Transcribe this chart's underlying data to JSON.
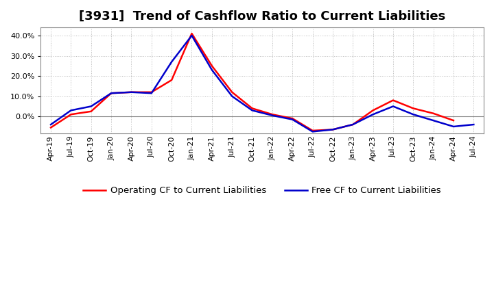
{
  "title": "[3931]  Trend of Cashflow Ratio to Current Liabilities",
  "x_labels": [
    "Apr-19",
    "Jul-19",
    "Oct-19",
    "Jan-20",
    "Apr-20",
    "Jul-20",
    "Oct-20",
    "Jan-21",
    "Apr-21",
    "Jul-21",
    "Oct-21",
    "Jan-22",
    "Apr-22",
    "Jul-22",
    "Oct-22",
    "Jan-23",
    "Apr-23",
    "Jul-23",
    "Oct-23",
    "Jan-24",
    "Apr-24",
    "Jul-24"
  ],
  "operating_cf": [
    -0.055,
    0.01,
    0.025,
    0.115,
    0.12,
    0.12,
    0.18,
    0.41,
    0.25,
    0.12,
    0.04,
    0.01,
    -0.01,
    -0.07,
    -0.065,
    -0.04,
    0.03,
    0.08,
    0.04,
    0.015,
    -0.02,
    null
  ],
  "free_cf": [
    -0.04,
    0.03,
    0.05,
    0.115,
    0.12,
    0.115,
    0.27,
    0.4,
    0.23,
    0.1,
    0.03,
    0.005,
    -0.015,
    -0.075,
    -0.065,
    -0.04,
    0.01,
    0.05,
    0.01,
    -0.02,
    -0.05,
    -0.04
  ],
  "operating_color": "#ff0000",
  "free_color": "#0000cc",
  "ylim": [
    -0.085,
    0.44
  ],
  "yticks": [
    0.0,
    0.1,
    0.2,
    0.3,
    0.4
  ],
  "background_color": "#ffffff",
  "grid_color": "#bbbbbb",
  "legend_op": "Operating CF to Current Liabilities",
  "legend_free": "Free CF to Current Liabilities",
  "title_fontsize": 13,
  "tick_fontsize": 8,
  "legend_fontsize": 9.5,
  "linewidth": 1.8
}
